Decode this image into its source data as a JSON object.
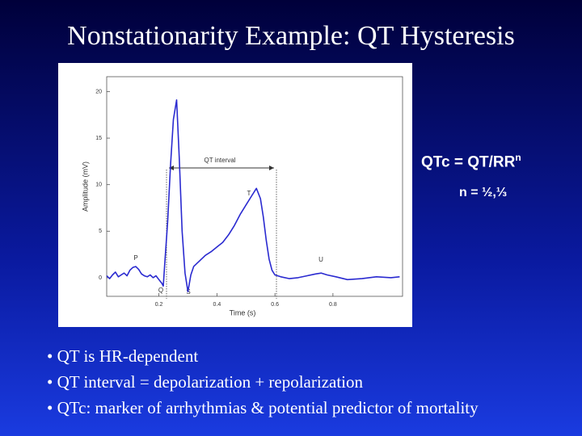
{
  "title": "Nonstationarity Example: QT Hysteresis",
  "formula": {
    "base": "QTc = QT/RR",
    "exponent": "n",
    "exponent_values": "n = ½,⅓"
  },
  "bullets": [
    "QT is HR-dependent",
    "QT interval = depolarization + repolarization",
    "QTc: marker of arrhythmias & potential predictor of mortality"
  ],
  "chart_data": {
    "type": "line",
    "xlabel": "Time (s)",
    "ylabel": "Amplitude (mV)",
    "color": "#2a2ad0",
    "x": [
      0.02,
      0.03,
      0.04,
      0.05,
      0.06,
      0.07,
      0.08,
      0.09,
      0.1,
      0.11,
      0.12,
      0.13,
      0.14,
      0.15,
      0.16,
      0.17,
      0.18,
      0.19,
      0.2,
      0.21,
      0.215,
      0.22,
      0.23,
      0.24,
      0.25,
      0.261,
      0.27,
      0.28,
      0.29,
      0.3,
      0.31,
      0.32,
      0.34,
      0.36,
      0.38,
      0.4,
      0.42,
      0.44,
      0.46,
      0.48,
      0.5,
      0.52,
      0.536,
      0.55,
      0.56,
      0.57,
      0.58,
      0.59,
      0.6,
      0.62,
      0.65,
      0.68,
      0.71,
      0.74,
      0.76,
      0.78,
      0.81,
      0.85,
      0.9,
      0.95,
      1.0,
      1.03
    ],
    "values": [
      0.2,
      -0.1,
      0.3,
      0.6,
      0.1,
      0.3,
      0.5,
      0.2,
      0.8,
      1.1,
      1.2,
      0.9,
      0.4,
      0.2,
      0.1,
      0.3,
      0,
      0.2,
      -0.2,
      -0.6,
      -0.9,
      1.5,
      6,
      12,
      17,
      19.1,
      13,
      5,
      0.5,
      -1.5,
      0.3,
      1.2,
      1.8,
      2.4,
      2.8,
      3.3,
      3.8,
      4.6,
      5.6,
      6.8,
      7.8,
      8.8,
      9.6,
      8.5,
      6.5,
      4,
      2,
      0.8,
      0.3,
      0.1,
      -0.1,
      0,
      0.2,
      0.4,
      0.5,
      0.3,
      0.1,
      -0.2,
      -0.1,
      0.1,
      0,
      0.1
    ],
    "xlim": [
      0.02,
      1.04
    ],
    "ylim": [
      -2,
      21.6
    ],
    "xticks": [
      0.2,
      0.4,
      0.6,
      0.8
    ],
    "yticks": [
      0,
      5,
      10,
      15,
      20
    ],
    "annotations": {
      "p": "P",
      "q": "Q",
      "s": "S",
      "t": "T",
      "u": "U",
      "qt": "QT interval"
    }
  }
}
